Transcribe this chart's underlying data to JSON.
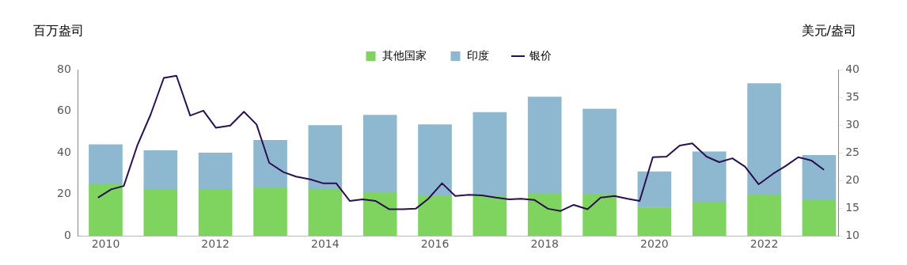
{
  "chart_data": {
    "type": "bar",
    "stacked": true,
    "ylabel": "百万盎司",
    "y2label": "美元/盎司",
    "x": [
      2010,
      2011,
      2012,
      2013,
      2014,
      2015,
      2016,
      2017,
      2018,
      2019,
      2020,
      2021,
      2022,
      2023
    ],
    "series": [
      {
        "name": "其他国家",
        "color": "#7fd35f",
        "values": [
          24.9,
          22.3,
          22.2,
          23.3,
          22.5,
          21.0,
          19.1,
          19.4,
          20.3,
          19.8,
          13.6,
          16.1,
          19.6,
          17.3
        ]
      },
      {
        "name": "印度",
        "color": "#8db8d0",
        "values": [
          19.0,
          18.8,
          17.7,
          22.7,
          30.6,
          37.1,
          34.4,
          40.0,
          46.5,
          41.2,
          17.3,
          24.4,
          53.7,
          21.5
        ]
      },
      {
        "name": "银价",
        "type": "line",
        "axis": "y2",
        "color": "#2a1050",
        "marker": "none",
        "x": [
          2009.86,
          2010.1,
          2010.33,
          2010.58,
          2010.82,
          2011.06,
          2011.29,
          2011.54,
          2011.78,
          2012.01,
          2012.27,
          2012.52,
          2012.75,
          2012.98,
          2013.24,
          2013.47,
          2013.73,
          2013.96,
          2014.2,
          2014.45,
          2014.68,
          2014.92,
          2015.17,
          2015.41,
          2015.65,
          2015.88,
          2016.13,
          2016.37,
          2016.62,
          2016.86,
          2017.11,
          2017.35,
          2017.57,
          2017.81,
          2018.06,
          2018.29,
          2018.53,
          2018.78,
          2019.02,
          2019.27,
          2019.51,
          2019.73,
          2019.97,
          2020.22,
          2020.46,
          2020.69,
          2020.95,
          2021.18,
          2021.42,
          2021.65,
          2021.9,
          2022.16,
          2022.39,
          2022.62,
          2022.86,
          2023.09
        ],
        "values": [
          16.9,
          18.4,
          19.0,
          26.4,
          31.9,
          38.5,
          38.9,
          31.7,
          32.6,
          29.5,
          29.9,
          32.4,
          30.1,
          23.2,
          21.5,
          20.7,
          20.2,
          19.5,
          19.5,
          16.3,
          16.6,
          16.3,
          14.8,
          14.8,
          14.9,
          16.7,
          19.5,
          17.2,
          17.4,
          17.3,
          16.9,
          16.6,
          16.7,
          16.5,
          14.9,
          14.5,
          15.6,
          14.8,
          16.9,
          17.2,
          16.7,
          16.3,
          24.2,
          24.3,
          26.3,
          26.7,
          24.3,
          23.3,
          24.0,
          22.5,
          19.3,
          21.2,
          22.6,
          24.2,
          23.6,
          21.9
        ]
      }
    ],
    "xlim": [
      2009.5,
      2023.35
    ],
    "xticks": [
      2010,
      2012,
      2014,
      2016,
      2018,
      2020,
      2022
    ],
    "ylim": [
      0,
      80
    ],
    "yticks": [
      0,
      20,
      40,
      60,
      80
    ],
    "y2lim": [
      10,
      40
    ],
    "y2ticks": [
      10,
      15,
      20,
      25,
      30,
      35,
      40
    ],
    "grid": false,
    "legend": "top"
  }
}
